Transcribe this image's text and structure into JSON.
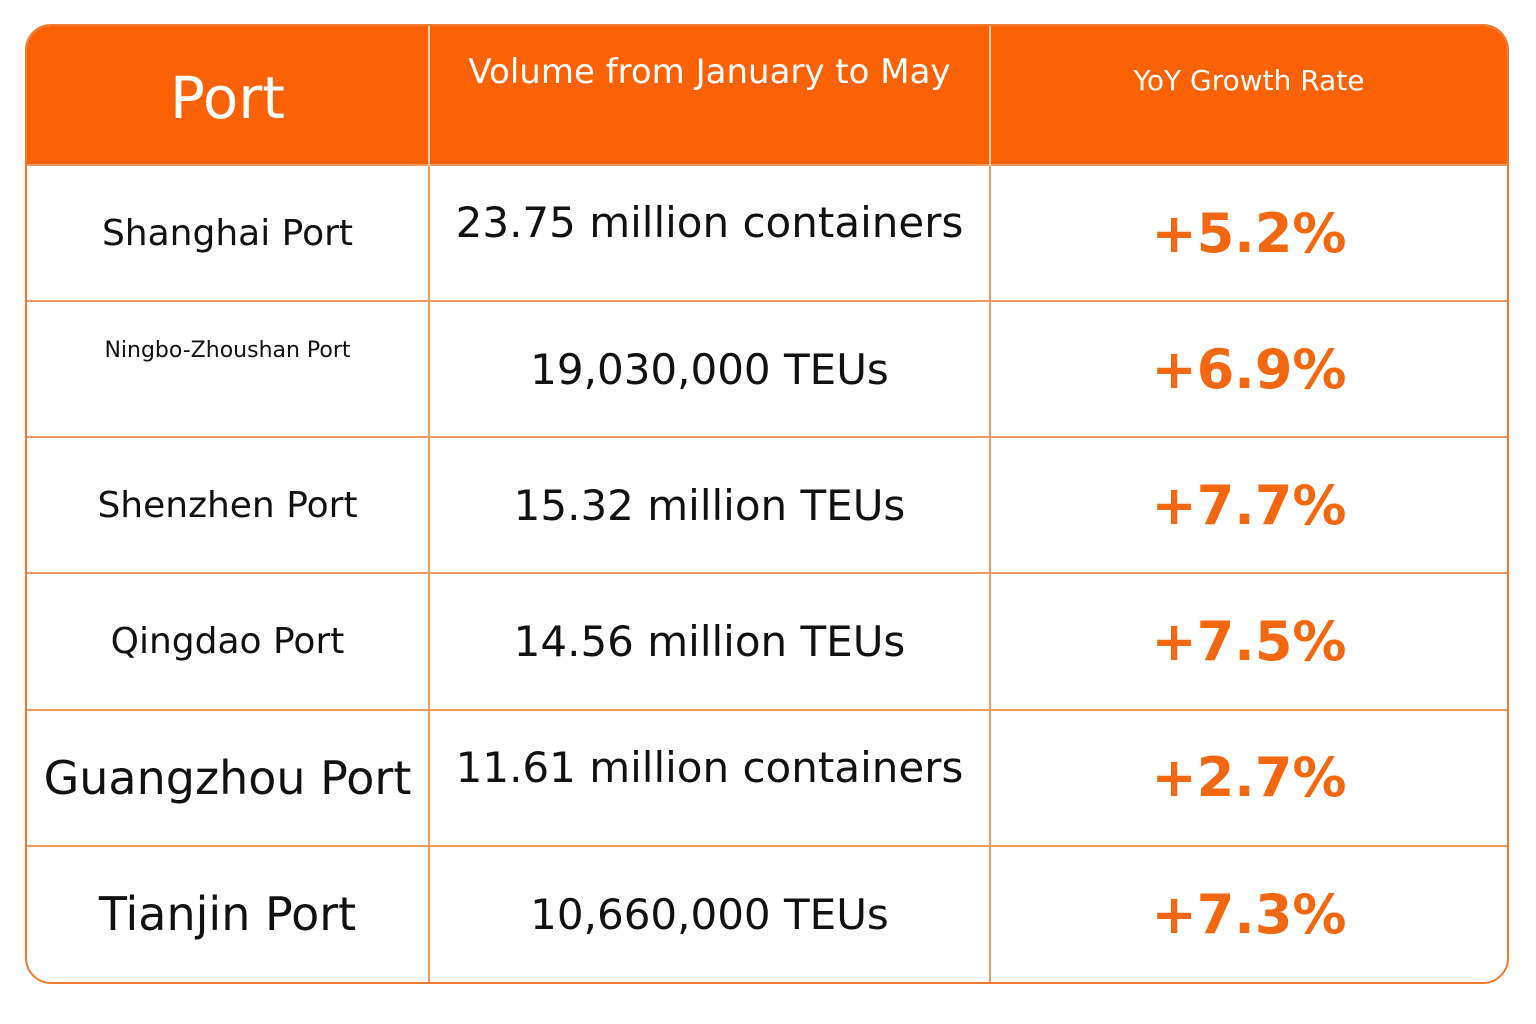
{
  "header": {
    "port": "Port",
    "volume": "Volume from January to May",
    "growth": "YoY Growth Rate"
  },
  "rows": [
    {
      "port": "Shanghai Port",
      "volume": "23.75 million containers",
      "growth": "+5.2%"
    },
    {
      "port": "Ningbo-Zhoushan Port",
      "volume": "19,030,000 TEUs",
      "growth": "+6.9%"
    },
    {
      "port": "Shenzhen Port",
      "volume": "15.32 million TEUs",
      "growth": "+7.7%"
    },
    {
      "port": "Qingdao Port",
      "volume": "14.56 million TEUs",
      "growth": "+7.5%"
    },
    {
      "port": "Guangzhou Port",
      "volume": "11.61 million containers",
      "growth": "+2.7%"
    },
    {
      "port": "Tianjin Port",
      "volume": "10,660,000 TEUs",
      "growth": "+7.3%"
    }
  ],
  "colors": {
    "header_bg": "#fb6206",
    "accent": "#f36710",
    "grid": "#f29a63"
  }
}
